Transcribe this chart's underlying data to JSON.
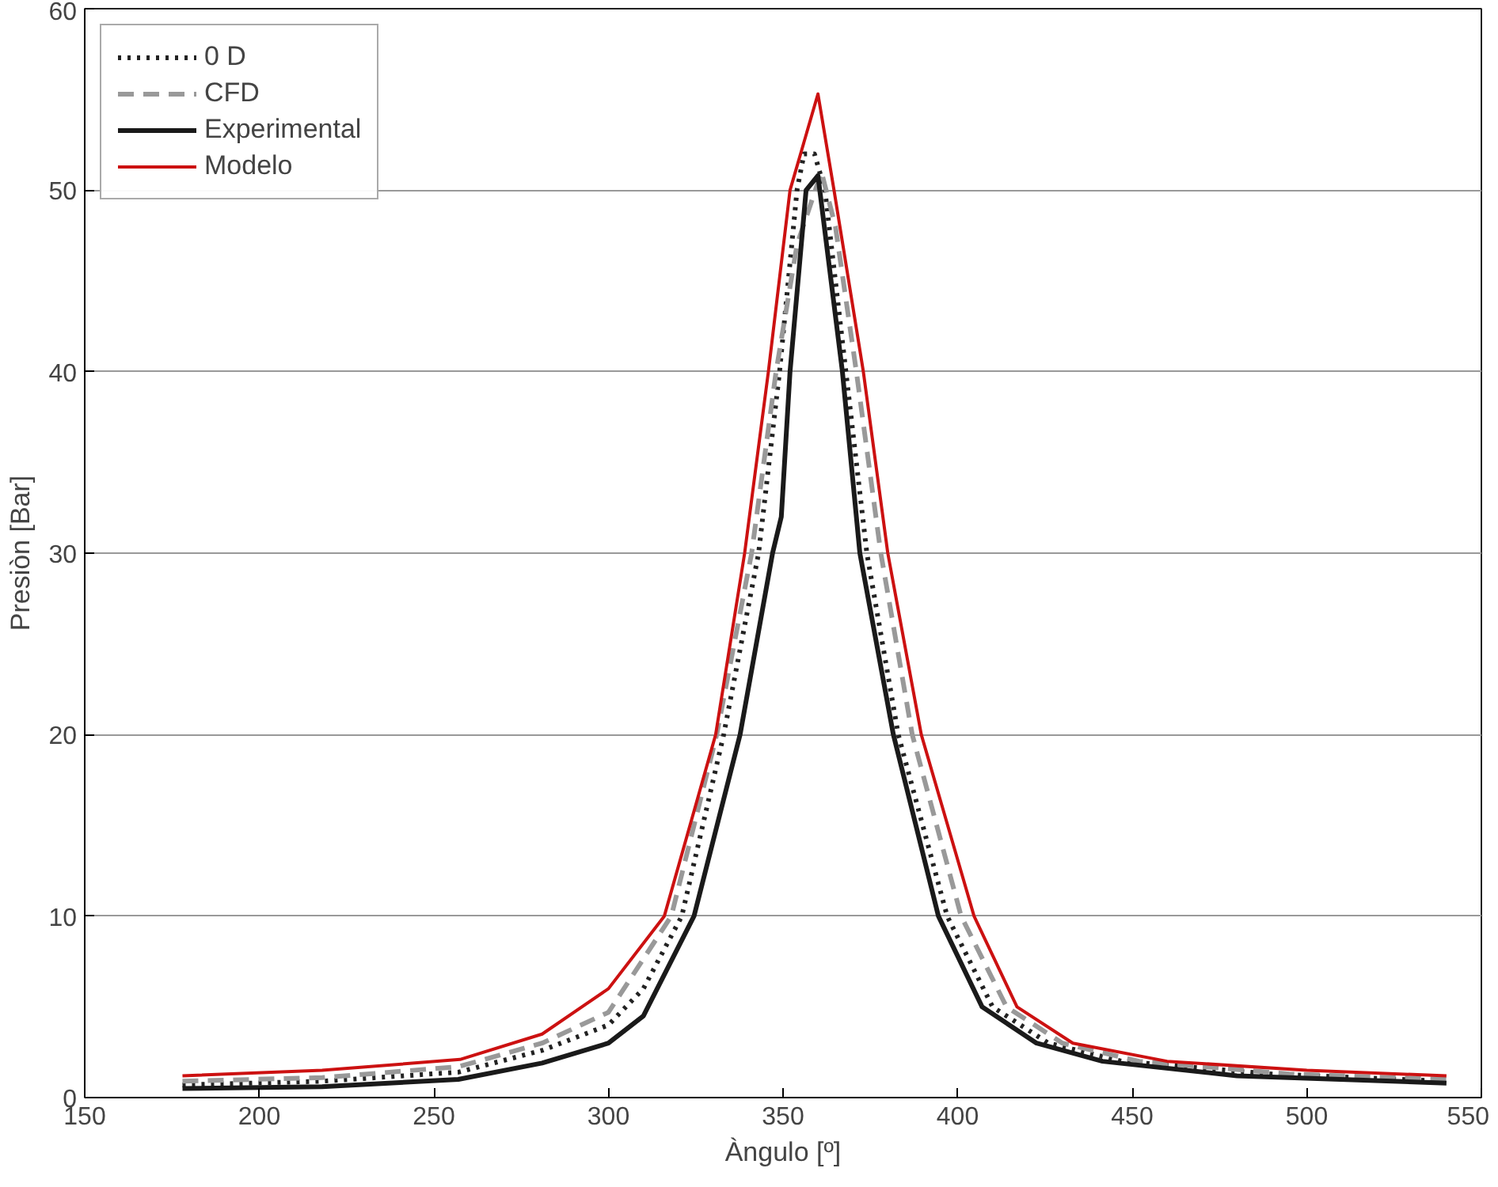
{
  "chart_data": {
    "type": "line",
    "xlabel": "Àngulo [º]",
    "ylabel": "Presiòn [Bar]",
    "xlim": [
      150,
      550
    ],
    "ylim": [
      0,
      60
    ],
    "xticks": [
      150,
      200,
      250,
      300,
      350,
      400,
      450,
      500,
      550
    ],
    "yticks": [
      0,
      10,
      20,
      30,
      40,
      50,
      60
    ],
    "grid": "y",
    "legend": "top left",
    "series": [
      {
        "name": "0 D",
        "color": "#222222",
        "line_style": "dotted",
        "x": [
          178,
          218,
          257,
          281,
          300,
          310,
          321,
          333,
          343,
          349,
          354,
          356,
          359,
          362,
          368,
          374,
          383,
          397,
          410,
          426,
          447,
          490,
          540
        ],
        "values": [
          0.7,
          0.9,
          1.4,
          2.6,
          4.0,
          6,
          10,
          20,
          30,
          40,
          50,
          52,
          52,
          50,
          40,
          30,
          20,
          10,
          5,
          3,
          2,
          1.3,
          0.9
        ]
      },
      {
        "name": "CFD",
        "color": "#999999",
        "line_style": "dashed",
        "x": [
          178,
          218,
          257,
          281,
          300,
          318,
          331,
          341,
          348,
          354,
          361,
          365,
          371,
          378,
          387,
          401,
          414,
          430,
          452,
          495,
          540
        ],
        "values": [
          0.9,
          1.1,
          1.7,
          3.0,
          4.7,
          10,
          20,
          30,
          40,
          47,
          51,
          48,
          40,
          30,
          20,
          10,
          5,
          3,
          2,
          1.3,
          1.0
        ]
      },
      {
        "name": "Experimental",
        "color": "#1a1a1a",
        "line_style": "solid",
        "x": [
          178,
          218,
          257,
          281,
          300,
          310,
          324.5,
          337.7,
          347,
          349.5,
          352,
          356.6,
          360,
          367,
          372,
          381.6,
          394.5,
          407,
          422.6,
          441.5,
          480,
          540
        ],
        "values": [
          0.5,
          0.6,
          1.0,
          1.9,
          3.0,
          4.5,
          10,
          20,
          30,
          32,
          40,
          50,
          50.8,
          40,
          30,
          20,
          10,
          5,
          3,
          2,
          1.2,
          0.8
        ]
      },
      {
        "name": "Modelo",
        "color": "#cc1111",
        "line_style": "solid",
        "x": [
          178,
          218,
          257.5,
          281,
          300,
          316,
          330.7,
          339,
          345.8,
          352,
          360,
          364.6,
          373,
          380,
          389.6,
          404.7,
          417,
          433,
          460,
          500,
          540
        ],
        "values": [
          1.2,
          1.5,
          2.1,
          3.5,
          6.0,
          10,
          20,
          30,
          40,
          50,
          55.3,
          50,
          40,
          30,
          20,
          10,
          5,
          3,
          2,
          1.5,
          1.2
        ]
      }
    ]
  }
}
